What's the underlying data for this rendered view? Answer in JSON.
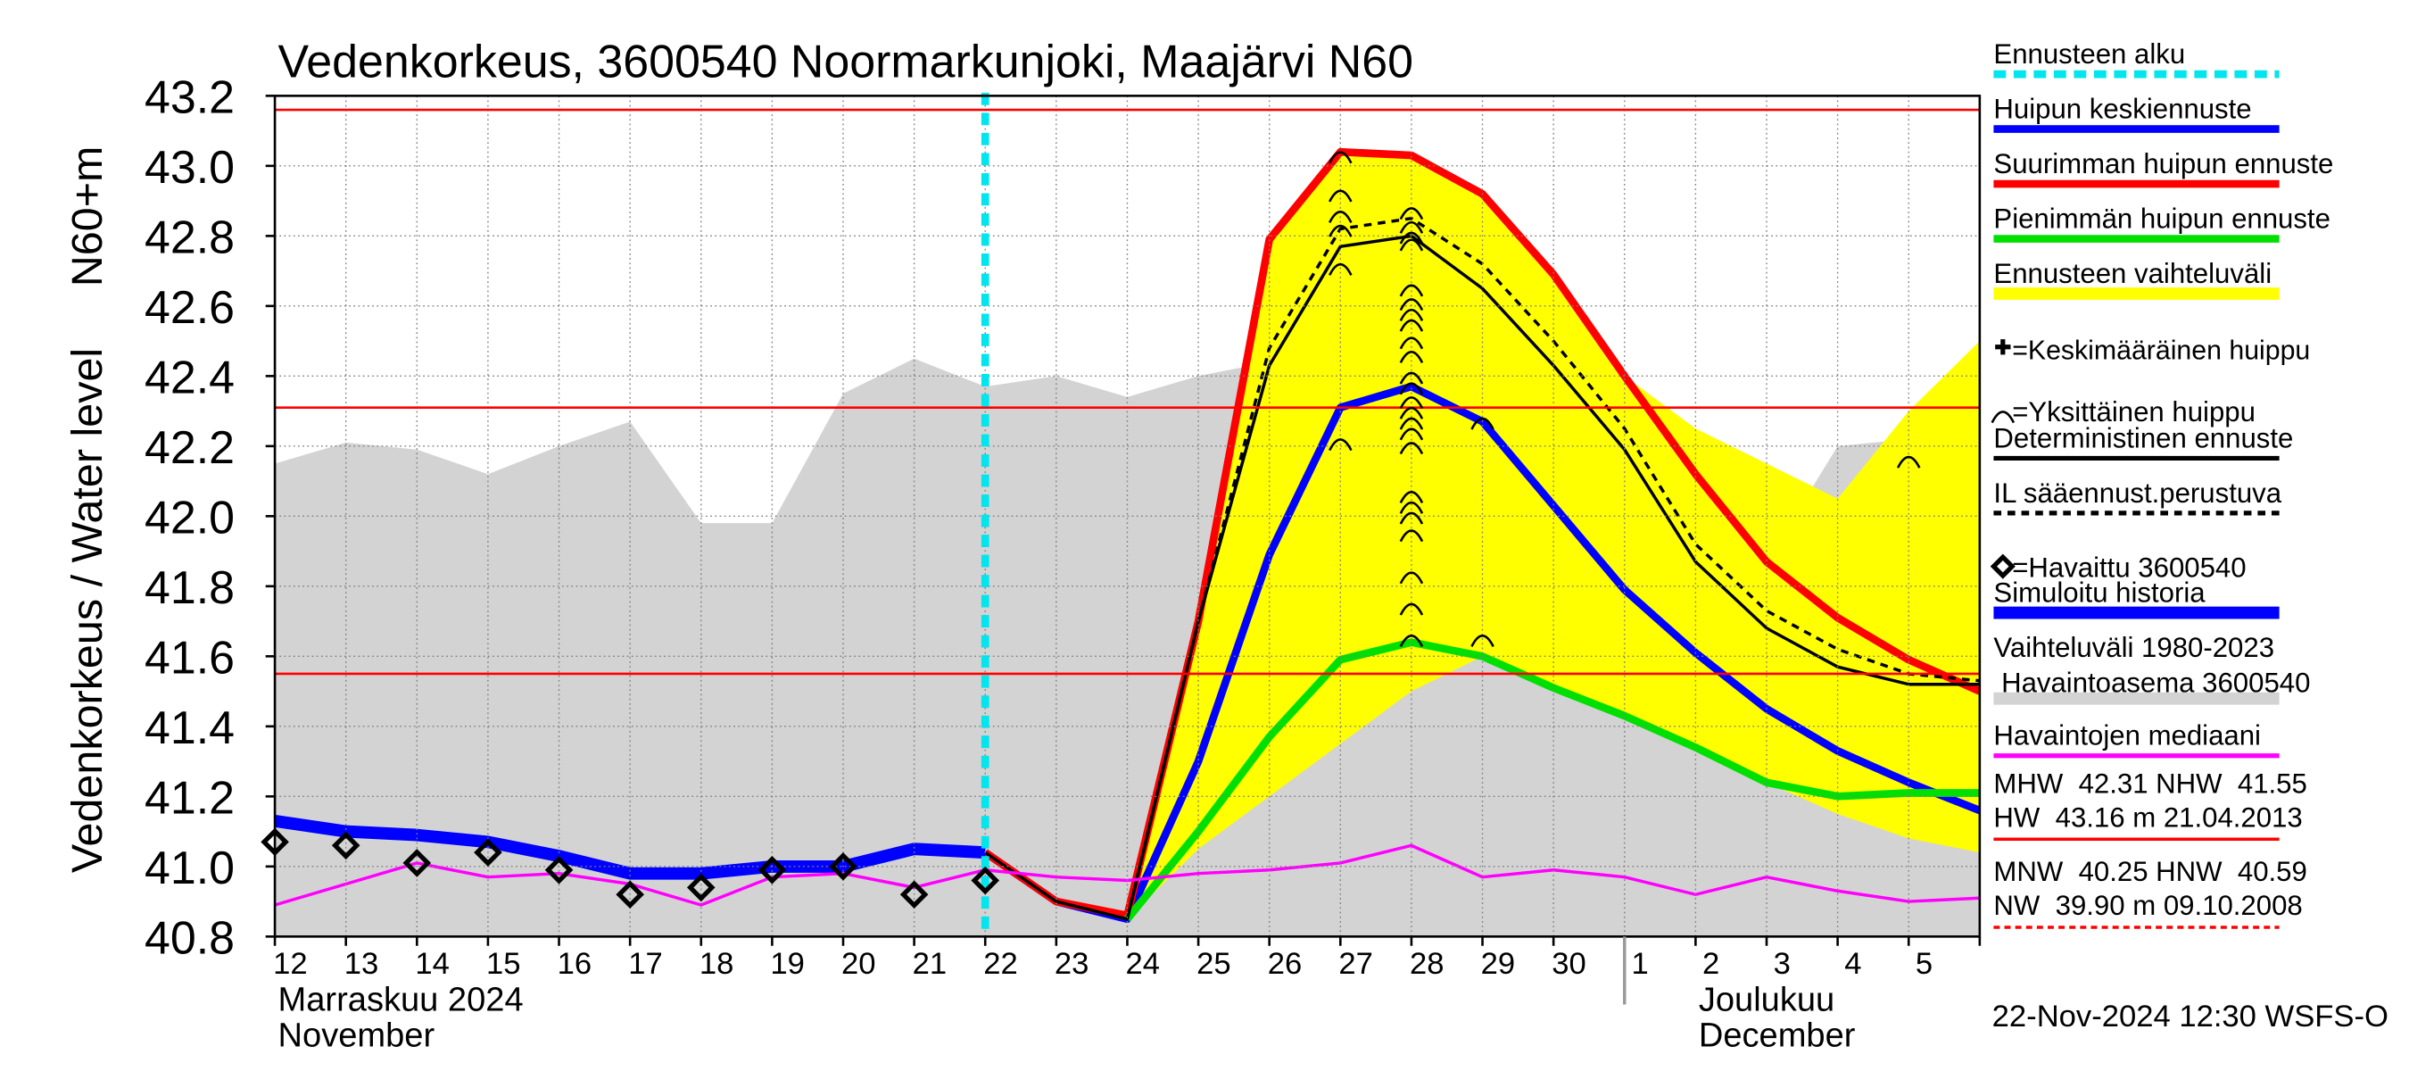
{
  "chart_data": {
    "type": "line",
    "title": "Vedenkorkeus, 3600540 Noormarkunjoki, Maajärvi N60",
    "ylabel": "Vedenkorkeus / Water level",
    "yunit": "N60+m",
    "categories": [
      "12",
      "13",
      "14",
      "15",
      "16",
      "17",
      "18",
      "19",
      "20",
      "21",
      "22",
      "23",
      "24",
      "25",
      "26",
      "27",
      "28",
      "29",
      "30",
      "1",
      "2",
      "3",
      "4",
      "5",
      null
    ],
    "months": [
      {
        "start": "12",
        "lines": [
          "Marraskuu 2024",
          "November"
        ]
      },
      {
        "start": "1",
        "lines": [
          "Joulukuu",
          "December"
        ]
      }
    ],
    "ylim": [
      40.8,
      43.2
    ],
    "yticks": [
      40.8,
      {
        "value": 41,
        "label": "41.0"
      },
      41.2,
      41.4,
      41.6,
      41.8,
      {
        "value": 42,
        "label": "42.0"
      },
      42.2,
      42.4,
      42.6,
      42.8,
      {
        "value": 43,
        "label": "43.0"
      },
      43.2
    ],
    "grid": true,
    "hlines": [
      {
        "value": 43.16,
        "color": "#ff0000"
      },
      {
        "value": 42.31,
        "color": "#ff0000"
      },
      {
        "value": 41.55,
        "color": "#ff0000"
      }
    ],
    "series": [
      {
        "name": "Ennusteen alku",
        "kind": "vline",
        "color": "#00e5ee",
        "at": "22"
      },
      {
        "name": "Huipun keskiennuste",
        "kind": "line",
        "color": "#0000ff",
        "width": 5,
        "values": [
          null,
          null,
          null,
          null,
          null,
          null,
          null,
          null,
          null,
          null,
          41.04,
          40.9,
          40.85,
          41.3,
          41.89,
          42.31,
          42.37,
          42.27,
          42.03,
          41.79,
          41.61,
          41.45,
          41.33,
          41.24,
          41.16
        ]
      },
      {
        "name": "Suurimman huipun ennuste",
        "kind": "line",
        "color": "#ff0000",
        "width": 5,
        "values": [
          null,
          null,
          null,
          null,
          null,
          null,
          null,
          null,
          null,
          null,
          41.04,
          40.9,
          40.86,
          41.7,
          42.79,
          43.04,
          43.03,
          42.92,
          42.69,
          42.4,
          42.12,
          41.87,
          41.71,
          41.59,
          41.5
        ]
      },
      {
        "name": "Pienimmän huipun ennuste",
        "kind": "line",
        "color": "#00e000",
        "width": 5,
        "values": [
          null,
          null,
          null,
          null,
          null,
          null,
          null,
          null,
          null,
          null,
          null,
          null,
          40.85,
          41.1,
          41.37,
          41.59,
          41.64,
          41.6,
          41.51,
          41.43,
          41.34,
          41.24,
          41.2,
          41.21,
          41.21
        ]
      },
      {
        "name": "Ennusteen vaihteluväli",
        "kind": "band",
        "color": "#ffff00",
        "lower": [
          null,
          null,
          null,
          null,
          null,
          null,
          null,
          null,
          null,
          null,
          null,
          null,
          40.85,
          41.05,
          41.2,
          41.35,
          41.5,
          41.6,
          41.5,
          41.42,
          41.33,
          41.24,
          41.15,
          41.08,
          41.04
        ],
        "upper": [
          null,
          null,
          null,
          null,
          null,
          null,
          null,
          null,
          null,
          null,
          null,
          null,
          40.85,
          41.75,
          42.79,
          43.04,
          43.03,
          42.92,
          42.69,
          42.4,
          42.25,
          42.15,
          42.05,
          42.3,
          42.5
        ]
      },
      {
        "name": "=Keskimääräinen huippu",
        "kind": "mean-peak",
        "color": "#000000"
      },
      {
        "name": "=Yksittäinen huippu",
        "kind": "peaks",
        "color": "#000000",
        "values": [
          null,
          null,
          null,
          null,
          null,
          null,
          null,
          null,
          null,
          null,
          null,
          null,
          null,
          null,
          null,
          [
            43.03,
            42.92,
            42.86,
            42.82,
            42.71,
            42.21
          ],
          [
            42.87,
            42.83,
            42.8,
            42.78,
            42.65,
            42.61,
            42.58,
            42.55,
            42.5,
            42.46,
            42.4,
            42.37,
            42.33,
            42.3,
            42.27,
            42.24,
            42.2,
            42.06,
            42.03,
            42.0,
            41.95,
            41.83,
            41.74,
            41.65
          ],
          [
            42.27,
            41.65
          ],
          null,
          null,
          null,
          null,
          null,
          [
            42.16
          ],
          null
        ]
      },
      {
        "name": "Deterministinen ennuste",
        "kind": "line",
        "color": "#000000",
        "width": 2,
        "values": [
          null,
          null,
          null,
          null,
          null,
          null,
          null,
          null,
          null,
          null,
          41.04,
          40.9,
          40.85,
          41.7,
          42.43,
          42.77,
          42.8,
          42.65,
          42.43,
          42.19,
          41.87,
          41.68,
          41.57,
          41.52,
          41.52
        ]
      },
      {
        "name": "IL sääennust.perustuva",
        "kind": "line",
        "color": "#000000",
        "width": 2,
        "dash": true,
        "values": [
          null,
          null,
          null,
          null,
          null,
          null,
          null,
          null,
          null,
          null,
          null,
          null,
          40.85,
          41.7,
          42.48,
          42.82,
          42.85,
          42.72,
          42.5,
          42.25,
          41.92,
          41.73,
          41.62,
          41.55,
          41.53
        ]
      },
      {
        "name": "=Havaittu 3600540",
        "kind": "scatter",
        "color": "#000000",
        "values": [
          41.07,
          41.06,
          41.01,
          41.04,
          40.99,
          40.92,
          40.94,
          40.99,
          41.0,
          40.92,
          40.96,
          null,
          null,
          null,
          null,
          null,
          null,
          null,
          null,
          null,
          null,
          null,
          null,
          null,
          null
        ]
      },
      {
        "name": "Simuloitu historia",
        "kind": "line",
        "color": "#0000ff",
        "width": 8,
        "values": [
          41.13,
          41.1,
          41.09,
          41.07,
          41.03,
          40.98,
          40.98,
          41.0,
          41.0,
          41.05,
          41.04,
          null,
          null,
          null,
          null,
          null,
          null,
          null,
          null,
          null,
          null,
          null,
          null,
          null,
          null
        ]
      },
      {
        "name": "Vaihteluväli 1980-2023",
        "subname": " Havaintoasema 3600540",
        "kind": "area",
        "color": "#d3d3d3",
        "values": [
          42.15,
          42.21,
          42.19,
          42.12,
          42.2,
          42.27,
          41.98,
          41.98,
          42.35,
          42.45,
          42.37,
          42.4,
          42.34,
          42.4,
          42.44,
          42.42,
          42.35,
          42.25,
          42.15,
          42.14,
          41.97,
          41.87,
          42.2,
          42.22,
          42.2
        ]
      },
      {
        "name": "Havaintojen mediaani",
        "kind": "line",
        "color": "#ff00ff",
        "width": 2,
        "values": [
          40.89,
          40.95,
          41.01,
          40.97,
          40.98,
          40.95,
          40.89,
          40.97,
          40.98,
          40.94,
          40.99,
          40.97,
          40.96,
          40.98,
          40.99,
          41.01,
          41.06,
          40.97,
          40.99,
          40.97,
          40.92,
          40.97,
          40.93,
          40.9,
          40.91
        ]
      }
    ],
    "stats": [
      {
        "lines": [
          "MHW  42.31 NHW  41.55",
          "HW  43.16 m 21.04.2013"
        ],
        "color": "#ff0000",
        "dash": false
      },
      {
        "lines": [
          "MNW  40.25 HNW  40.59",
          "NW  39.90 m 09.10.2008"
        ],
        "color": "#ff0000",
        "dash": true
      }
    ],
    "footer": "22-Nov-2024 12:30 WSFS-O"
  }
}
